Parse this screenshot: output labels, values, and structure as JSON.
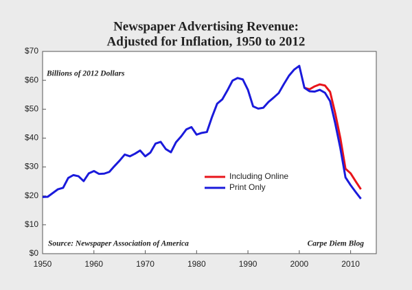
{
  "chart_data": {
    "type": "line",
    "title": "Newspaper Advertising Revenue:",
    "subtitle": "Adjusted for Inflation, 1950 to 2012",
    "annotations": [
      "Billions of 2012 Dollars",
      "Source: Newspaper Association of America",
      "Carpe Diem Blog"
    ],
    "x": [
      1950,
      1951,
      1952,
      1953,
      1954,
      1955,
      1956,
      1957,
      1958,
      1959,
      1960,
      1961,
      1962,
      1963,
      1964,
      1965,
      1966,
      1967,
      1968,
      1969,
      1970,
      1971,
      1972,
      1973,
      1974,
      1975,
      1976,
      1977,
      1978,
      1979,
      1980,
      1981,
      1982,
      1983,
      1984,
      1985,
      1986,
      1987,
      1988,
      1989,
      1990,
      1991,
      1992,
      1993,
      1994,
      1995,
      1996,
      1997,
      1998,
      1999,
      2000,
      2001,
      2002,
      2003,
      2004,
      2005,
      2006,
      2007,
      2008,
      2009,
      2010,
      2011,
      2012
    ],
    "series": [
      {
        "name": "Including Online",
        "color": "#e8141a",
        "values": [
          null,
          null,
          null,
          null,
          null,
          null,
          null,
          null,
          null,
          null,
          null,
          null,
          null,
          null,
          null,
          null,
          null,
          null,
          null,
          null,
          null,
          null,
          null,
          null,
          null,
          null,
          null,
          null,
          null,
          null,
          null,
          null,
          null,
          null,
          null,
          null,
          null,
          null,
          null,
          null,
          null,
          null,
          null,
          null,
          null,
          null,
          null,
          null,
          null,
          null,
          null,
          57.4,
          56.9,
          57.9,
          58.6,
          58.2,
          56.0,
          48.6,
          40.0,
          29.4,
          27.8,
          25.0,
          22.3
        ]
      },
      {
        "name": "Print Only",
        "color": "#1a1adb",
        "values": [
          19.6,
          19.7,
          21.0,
          22.3,
          22.8,
          26.2,
          27.2,
          26.8,
          25.1,
          27.8,
          28.6,
          27.6,
          27.7,
          28.3,
          30.3,
          32.2,
          34.3,
          33.7,
          34.6,
          35.7,
          33.7,
          35.0,
          38.1,
          38.7,
          36.2,
          35.1,
          38.6,
          40.6,
          43.0,
          43.8,
          41.2,
          41.8,
          42.1,
          47.3,
          51.9,
          53.4,
          56.5,
          59.9,
          60.8,
          60.3,
          56.7,
          51.0,
          50.2,
          50.5,
          52.5,
          54.0,
          55.6,
          58.7,
          61.6,
          63.7,
          65.0,
          57.4,
          56.2,
          56.1,
          56.7,
          55.7,
          52.8,
          45.1,
          36.5,
          26.4,
          23.7,
          21.3,
          19.0
        ]
      }
    ],
    "xlim": [
      1950,
      2015
    ],
    "xticks": [
      1950,
      1960,
      1970,
      1980,
      1990,
      2000,
      2010
    ],
    "ylim": [
      0,
      70
    ],
    "yticks": [
      {
        "value": 0,
        "label": "$0"
      },
      {
        "value": 10,
        "label": "$10"
      },
      {
        "value": 20,
        "label": "$20"
      },
      {
        "value": 30,
        "label": "$30"
      },
      {
        "value": 40,
        "label": "$40"
      },
      {
        "value": 50,
        "label": "$50"
      },
      {
        "value": 60,
        "label": "$60"
      },
      {
        "value": 70,
        "label": "$70"
      }
    ],
    "grid": false,
    "legend": "center"
  }
}
